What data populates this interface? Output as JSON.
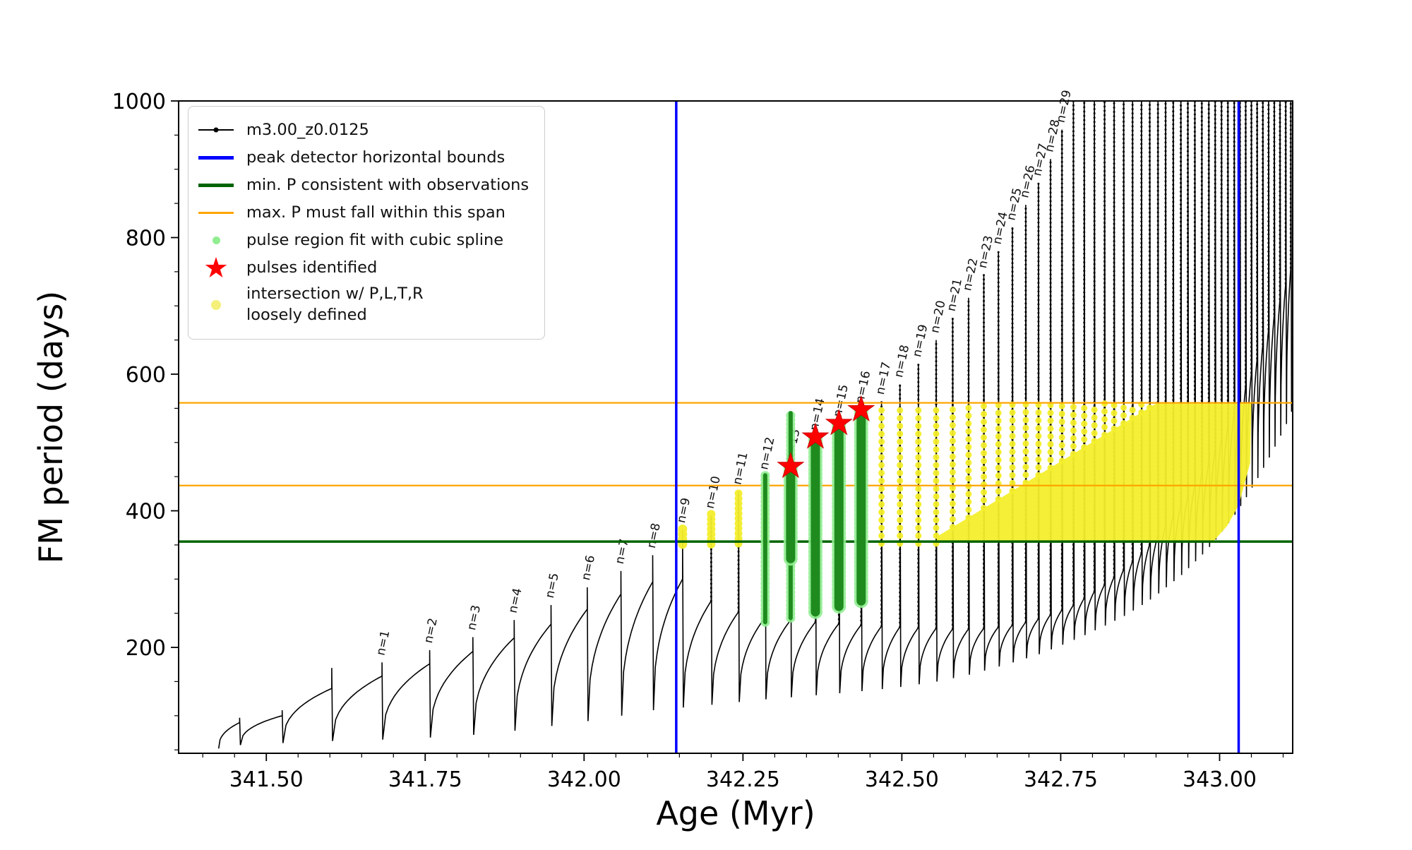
{
  "legend": {
    "entries": [
      {
        "marker": "line-dot",
        "color": "#000000",
        "label": "m3.00_z0.0125"
      },
      {
        "marker": "line",
        "color": "#0000ff",
        "label": "peak detector horizontal bounds"
      },
      {
        "marker": "line",
        "color": "#006400",
        "label": "min. P consistent with observations"
      },
      {
        "marker": "line",
        "color": "#ffa500",
        "label": "max. P must fall within this span"
      },
      {
        "marker": "dot",
        "color": "#90ee90",
        "label": "pulse region fit with cubic spline"
      },
      {
        "marker": "star",
        "color": "#ff0000",
        "label": "pulses identified"
      },
      {
        "marker": "dot",
        "color": "#f4f07a",
        "label": "intersection w/ P,L,T,R",
        "label2": "loosely defined"
      }
    ]
  },
  "chart_data": {
    "type": "line",
    "title": "",
    "series_label": "m3.00_z0.0125",
    "xlabel": "Age (Myr)",
    "ylabel": "FM period (days)",
    "xlim": [
      341.362,
      343.115
    ],
    "ylim": [
      45,
      1000
    ],
    "grid": false,
    "legend_position": "upper left",
    "x_ticks": [
      {
        "v": 341.5,
        "label": "341.50"
      },
      {
        "v": 341.75,
        "label": "341.75"
      },
      {
        "v": 342.0,
        "label": "342.00"
      },
      {
        "v": 342.25,
        "label": "342.25"
      },
      {
        "v": 342.5,
        "label": "342.50"
      },
      {
        "v": 342.75,
        "label": "342.75"
      },
      {
        "v": 343.0,
        "label": "343.00"
      }
    ],
    "y_ticks": [
      {
        "v": 200,
        "label": "200"
      },
      {
        "v": 400,
        "label": "400"
      },
      {
        "v": 600,
        "label": "600"
      },
      {
        "v": 800,
        "label": "800"
      },
      {
        "v": 1000,
        "label": "1000"
      }
    ],
    "x_minor_step": 0.05,
    "y_minor_step": 50,
    "pulse_label_prefix": "n=",
    "colors": {
      "track": "#000000",
      "bounds": "#0000ff",
      "min_p": "#006400",
      "max_p": "#ffa500",
      "spline": "#90ee90",
      "spline_core": "#1f8b1f",
      "pulse_star": "#ff0000",
      "intersection": "#f4ef2c"
    },
    "reference_lines": {
      "peak_detector_bounds_x": [
        342.145,
        343.03
      ],
      "min_p_y": 355,
      "max_p_span_y": [
        437,
        558
      ]
    },
    "pulse_track": {
      "start": {
        "age": 341.425,
        "period": 52
      },
      "pulses": [
        {
          "n": null,
          "age": 341.458,
          "base": 90,
          "peak": 97,
          "trough": 57
        },
        {
          "n": null,
          "age": 341.525,
          "base": 100,
          "peak": 108,
          "trough": 60
        },
        {
          "n": null,
          "age": 341.603,
          "base": 140,
          "peak": 170,
          "trough": 63
        },
        {
          "n": 1,
          "age": 341.682,
          "base": 158,
          "peak": 178,
          "trough": 65
        },
        {
          "n": 2,
          "age": 341.757,
          "base": 176,
          "peak": 196,
          "trough": 68
        },
        {
          "n": 3,
          "age": 341.825,
          "base": 194,
          "peak": 215,
          "trough": 72
        },
        {
          "n": 4,
          "age": 341.89,
          "base": 214,
          "peak": 240,
          "trough": 78
        },
        {
          "n": 5,
          "age": 341.948,
          "base": 234,
          "peak": 262,
          "trough": 85
        },
        {
          "n": 6,
          "age": 342.005,
          "base": 256,
          "peak": 288,
          "trough": 92
        },
        {
          "n": 7,
          "age": 342.058,
          "base": 278,
          "peak": 312,
          "trough": 100
        },
        {
          "n": 8,
          "age": 342.108,
          "base": 296,
          "peak": 335,
          "trough": 108
        },
        {
          "n": 9,
          "age": 342.155,
          "base": 300,
          "peak": 372,
          "trough": 112
        },
        {
          "n": 10,
          "age": 342.2,
          "base": 268,
          "peak": 393,
          "trough": 116
        },
        {
          "n": 11,
          "age": 342.243,
          "base": 252,
          "peak": 428,
          "trough": 120
        },
        {
          "n": 12,
          "age": 342.285,
          "base": 244,
          "peak": 450,
          "trough": 124
        },
        {
          "n": 13,
          "age": 342.325,
          "base": 240,
          "peak": 462,
          "trough": 127
        },
        {
          "n": 14,
          "age": 342.364,
          "base": 237,
          "peak": 507,
          "trough": 130
        },
        {
          "n": 15,
          "age": 342.401,
          "base": 235,
          "peak": 527,
          "trough": 133
        },
        {
          "n": 16,
          "age": 342.436,
          "base": 233,
          "peak": 547,
          "trough": 136
        },
        {
          "n": 17,
          "age": 342.468,
          "base": 231,
          "peak": 560,
          "trough": 139
        },
        {
          "n": 18,
          "age": 342.497,
          "base": 230,
          "peak": 585,
          "trough": 142
        },
        {
          "n": 19,
          "age": 342.526,
          "base": 229,
          "peak": 615,
          "trough": 146
        },
        {
          "n": 20,
          "age": 342.554,
          "base": 228,
          "peak": 650,
          "trough": 150
        },
        {
          "n": 21,
          "age": 342.58,
          "base": 227,
          "peak": 682,
          "trough": 155
        },
        {
          "n": 22,
          "age": 342.605,
          "base": 227,
          "peak": 712,
          "trough": 160
        },
        {
          "n": 23,
          "age": 342.629,
          "base": 228,
          "peak": 745,
          "trough": 166
        },
        {
          "n": 24,
          "age": 342.652,
          "base": 230,
          "peak": 780,
          "trough": 172
        },
        {
          "n": 25,
          "age": 342.674,
          "base": 233,
          "peak": 815,
          "trough": 178
        },
        {
          "n": 26,
          "age": 342.695,
          "base": 237,
          "peak": 848,
          "trough": 184
        },
        {
          "n": 27,
          "age": 342.715,
          "base": 242,
          "peak": 880,
          "trough": 190
        },
        {
          "n": 28,
          "age": 342.734,
          "base": 248,
          "peak": 915,
          "trough": 197
        },
        {
          "n": 29,
          "age": 342.752,
          "base": 255,
          "peak": 958,
          "trough": 204
        },
        {
          "n": null,
          "age": 342.77,
          "base": 262,
          "peak": 1000,
          "trough": 211
        },
        {
          "n": null,
          "age": 342.787,
          "base": 272,
          "peak": 1030,
          "trough": 218
        },
        {
          "n": null,
          "age": 342.803,
          "base": 282,
          "peak": 1045,
          "trough": 225
        },
        {
          "n": null,
          "age": 342.819,
          "base": 292,
          "peak": 1055,
          "trough": 232
        },
        {
          "n": null,
          "age": 342.834,
          "base": 303,
          "peak": 1060,
          "trough": 239
        },
        {
          "n": null,
          "age": 342.849,
          "base": 314,
          "peak": 1060,
          "trough": 246
        },
        {
          "n": null,
          "age": 342.863,
          "base": 326,
          "peak": 1060,
          "trough": 254
        },
        {
          "n": null,
          "age": 342.877,
          "base": 338,
          "peak": 1060,
          "trough": 262
        },
        {
          "n": null,
          "age": 342.89,
          "base": 351,
          "peak": 1060,
          "trough": 270
        },
        {
          "n": null,
          "age": 342.903,
          "base": 364,
          "peak": 1060,
          "trough": 279
        },
        {
          "n": null,
          "age": 342.915,
          "base": 378,
          "peak": 1060,
          "trough": 288
        },
        {
          "n": null,
          "age": 342.927,
          "base": 392,
          "peak": 1060,
          "trough": 297
        },
        {
          "n": null,
          "age": 342.939,
          "base": 407,
          "peak": 1060,
          "trough": 306
        },
        {
          "n": null,
          "age": 342.95,
          "base": 422,
          "peak": 1060,
          "trough": 316
        },
        {
          "n": null,
          "age": 342.961,
          "base": 438,
          "peak": 1060,
          "trough": 326
        },
        {
          "n": null,
          "age": 342.972,
          "base": 454,
          "peak": 1060,
          "trough": 336
        },
        {
          "n": null,
          "age": 342.983,
          "base": 471,
          "peak": 1060,
          "trough": 347
        },
        {
          "n": null,
          "age": 342.993,
          "base": 488,
          "peak": 1060,
          "trough": 358
        },
        {
          "n": null,
          "age": 343.003,
          "base": 506,
          "peak": 1060,
          "trough": 370
        },
        {
          "n": null,
          "age": 343.013,
          "base": 524,
          "peak": 1060,
          "trough": 382
        },
        {
          "n": null,
          "age": 343.023,
          "base": 543,
          "peak": 1060,
          "trough": 394
        },
        {
          "n": null,
          "age": 343.032,
          "base": 562,
          "peak": 1060,
          "trough": 407
        },
        {
          "n": null,
          "age": 343.041,
          "base": 582,
          "peak": 1060,
          "trough": 420
        },
        {
          "n": null,
          "age": 343.05,
          "base": 602,
          "peak": 1060,
          "trough": 434
        },
        {
          "n": null,
          "age": 343.059,
          "base": 623,
          "peak": 1060,
          "trough": 448
        },
        {
          "n": null,
          "age": 343.068,
          "base": 644,
          "peak": 1060,
          "trough": 463
        },
        {
          "n": null,
          "age": 343.077,
          "base": 666,
          "peak": 1060,
          "trough": 478
        },
        {
          "n": null,
          "age": 343.086,
          "base": 688,
          "peak": 1060,
          "trough": 494
        },
        {
          "n": null,
          "age": 343.095,
          "base": 710,
          "peak": 1060,
          "trough": 510
        },
        {
          "n": null,
          "age": 343.104,
          "base": 733,
          "peak": 1060,
          "trough": 527
        },
        {
          "n": null,
          "age": 343.112,
          "base": 756,
          "peak": 1060,
          "trough": 545
        }
      ],
      "end": {
        "age": 343.115,
        "period": 560
      }
    },
    "spline_fit_columns": [
      {
        "age": 342.285,
        "y0": 237,
        "y1": 452,
        "w": 6
      },
      {
        "age": 342.325,
        "y0": 243,
        "y1": 543,
        "w": 6
      },
      {
        "age": 342.325,
        "y0": 330,
        "y1": 465,
        "w": 13
      },
      {
        "age": 342.364,
        "y0": 252,
        "y1": 508,
        "w": 13
      },
      {
        "age": 342.401,
        "y0": 260,
        "y1": 528,
        "w": 13
      },
      {
        "age": 342.436,
        "y0": 268,
        "y1": 548,
        "w": 13
      }
    ],
    "identified_pulses": [
      {
        "n": 13,
        "age": 342.325,
        "period": 465
      },
      {
        "n": 14,
        "age": 342.364,
        "period": 508
      },
      {
        "n": 15,
        "age": 342.401,
        "period": 528
      },
      {
        "n": 16,
        "age": 342.436,
        "period": 548
      }
    ],
    "intersection_region": {
      "fill_polygon": [
        [
          342.555,
          355
        ],
        [
          342.99,
          355
        ],
        [
          343.012,
          378
        ],
        [
          343.03,
          408
        ],
        [
          343.048,
          470
        ],
        [
          343.05,
          557
        ],
        [
          342.9,
          557
        ],
        [
          342.555,
          362
        ]
      ],
      "stripes": [
        {
          "age": 342.155,
          "y0": 351,
          "y1": 376,
          "w": 13,
          "sparse": false
        },
        {
          "age": 342.2,
          "y0": 351,
          "y1": 396,
          "w": 12,
          "sparse": false
        },
        {
          "age": 342.243,
          "y0": 352,
          "y1": 430,
          "w": 11,
          "sparse": false
        },
        {
          "age": 342.285,
          "y0": 352,
          "y1": 452,
          "w": 10,
          "sparse": false
        },
        {
          "age": 342.325,
          "y0": 352,
          "y1": 464,
          "w": 10,
          "sparse": false
        },
        {
          "age": 342.364,
          "y0": 352,
          "y1": 505,
          "w": 9,
          "sparse": true
        },
        {
          "age": 342.401,
          "y0": 352,
          "y1": 525,
          "w": 9,
          "sparse": true
        },
        {
          "age": 342.436,
          "y0": 352,
          "y1": 545,
          "w": 9,
          "sparse": true
        },
        {
          "age": 342.468,
          "y0": 352,
          "y1": 557,
          "w": 9,
          "sparse": true
        },
        {
          "age": 342.497,
          "y0": 352,
          "y1": 557,
          "w": 9,
          "sparse": true
        },
        {
          "age": 342.526,
          "y0": 352,
          "y1": 557,
          "w": 9,
          "sparse": true
        },
        {
          "age": 342.554,
          "y0": 352,
          "y1": 557,
          "w": 9,
          "sparse": true
        },
        {
          "age": 342.58,
          "y0": 376,
          "y1": 557,
          "w": 9,
          "sparse": true
        },
        {
          "age": 342.605,
          "y0": 390,
          "y1": 557,
          "w": 9,
          "sparse": true
        },
        {
          "age": 342.629,
          "y0": 404,
          "y1": 557,
          "w": 9,
          "sparse": true
        },
        {
          "age": 342.652,
          "y0": 417,
          "y1": 557,
          "w": 9,
          "sparse": true
        },
        {
          "age": 342.674,
          "y0": 429,
          "y1": 557,
          "w": 9,
          "sparse": true
        },
        {
          "age": 342.695,
          "y0": 441,
          "y1": 557,
          "w": 9,
          "sparse": true
        },
        {
          "age": 342.715,
          "y0": 452,
          "y1": 557,
          "w": 9,
          "sparse": true
        },
        {
          "age": 342.734,
          "y0": 463,
          "y1": 557,
          "w": 9,
          "sparse": true
        },
        {
          "age": 342.752,
          "y0": 473,
          "y1": 557,
          "w": 9,
          "sparse": true
        },
        {
          "age": 342.77,
          "y0": 483,
          "y1": 557,
          "w": 9,
          "sparse": true
        },
        {
          "age": 342.787,
          "y0": 493,
          "y1": 557,
          "w": 9,
          "sparse": true
        },
        {
          "age": 342.803,
          "y0": 502,
          "y1": 557,
          "w": 9,
          "sparse": true
        },
        {
          "age": 342.819,
          "y0": 511,
          "y1": 557,
          "w": 9,
          "sparse": true
        },
        {
          "age": 342.834,
          "y0": 520,
          "y1": 557,
          "w": 9,
          "sparse": true
        },
        {
          "age": 342.849,
          "y0": 528,
          "y1": 557,
          "w": 9,
          "sparse": true
        },
        {
          "age": 342.863,
          "y0": 536,
          "y1": 557,
          "w": 9,
          "sparse": true
        },
        {
          "age": 342.877,
          "y0": 544,
          "y1": 557,
          "w": 9,
          "sparse": true
        },
        {
          "age": 342.89,
          "y0": 551,
          "y1": 557,
          "w": 9,
          "sparse": true
        }
      ]
    }
  }
}
